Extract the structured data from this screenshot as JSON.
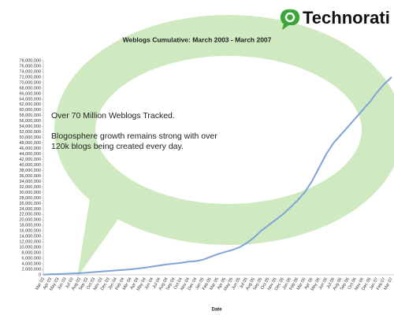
{
  "logo": "Technorati",
  "chart_data": {
    "type": "line",
    "title": "Weblogs Cumulative: March 2003 - March 2007",
    "x_label": "Date",
    "annotations": [
      "Over 70 Million Weblogs Tracked.",
      [
        "Blogosphere growth remains strong with over",
        "120k blogs being created every day."
      ]
    ],
    "categories": [
      "Mar 03",
      "Apr 03",
      "May 03",
      "Jun 03",
      "Jul 03",
      "Aug 03",
      "Sep 03",
      "Oct 03",
      "Nov 03",
      "Dec 03",
      "Jan 04",
      "Feb 04",
      "Mar 04",
      "Apr 04",
      "May 04",
      "Jun 04",
      "Jul 04",
      "Aug 04",
      "Sep 04",
      "Oct 04",
      "Nov 04",
      "Dec 04",
      "Jan 05",
      "Feb 05",
      "Mar 05",
      "Apr 05",
      "May 05",
      "Jun 05",
      "Jul 05",
      "Aug 05",
      "Sep 05",
      "Oct 05",
      "Nov 05",
      "Dec 05",
      "Jan 06",
      "Feb 06",
      "Mar 06",
      "Apr 06",
      "May 06",
      "Jun 06",
      "Jul 06",
      "Aug 06",
      "Sep 06",
      "Oct 06",
      "Nov 06",
      "Dec 06",
      "Jan 07",
      "Feb 07",
      "Mar 07"
    ],
    "series": [
      {
        "name": "Weblogs",
        "color": "#7fa4d8",
        "values": [
          100000,
          200000,
          300000,
          400000,
          500000,
          600000,
          800000,
          1000000,
          1200000,
          1400000,
          1600000,
          1800000,
          2000000,
          2300000,
          2600000,
          3000000,
          3400000,
          3800000,
          4100000,
          4400000,
          4800000,
          5000000,
          5500000,
          6500000,
          7500000,
          8300000,
          9000000,
          10000000,
          11500000,
          13500000,
          16000000,
          18000000,
          20000000,
          22000000,
          24500000,
          27000000,
          30000000,
          34000000,
          39000000,
          44000000,
          48000000,
          51000000,
          54000000,
          57000000,
          60000000,
          63000000,
          66500000,
          69500000,
          72000000
        ]
      }
    ],
    "ylim": [
      0,
      78000000
    ],
    "yticks": [
      0,
      {
        "value": 2000000,
        "label": "2,000,000"
      },
      {
        "value": 4000000,
        "label": "4,000,000"
      },
      {
        "value": 6000000,
        "label": "6,000,000"
      },
      {
        "value": 8000000,
        "label": "8,000,000"
      },
      {
        "value": 10000000,
        "label": "10,000,000"
      },
      {
        "value": 12000000,
        "label": "12,000,000"
      },
      {
        "value": 14000000,
        "label": "14,000,000"
      },
      {
        "value": 16000000,
        "label": "16,000,000"
      },
      {
        "value": 18000000,
        "label": "18,000,000"
      },
      {
        "value": 20000000,
        "label": "20,000,000"
      },
      {
        "value": 22000000,
        "label": "22,000,000"
      },
      {
        "value": 24000000,
        "label": "24,000,000"
      },
      {
        "value": 26000000,
        "label": "26,000,000"
      },
      {
        "value": 28000000,
        "label": "28,000,000"
      },
      {
        "value": 30000000,
        "label": "30,000,000"
      },
      {
        "value": 32000000,
        "label": "32,000,000"
      },
      {
        "value": 34000000,
        "label": "34,000,000"
      },
      {
        "value": 36000000,
        "label": "36,000,000"
      },
      {
        "value": 38000000,
        "label": "38,000,000"
      },
      {
        "value": 40000000,
        "label": "40,000,000"
      },
      {
        "value": 42000000,
        "label": "42,000,000"
      },
      {
        "value": 44000000,
        "label": "44,000,000"
      },
      {
        "value": 46000000,
        "label": "46,000,000"
      },
      {
        "value": 48000000,
        "label": "48,000,000"
      },
      {
        "value": 50000000,
        "label": "50,000,000"
      },
      {
        "value": 52000000,
        "label": "52,000,000"
      },
      {
        "value": 54000000,
        "label": "54,000,000"
      },
      {
        "value": 56000000,
        "label": "56,000,000"
      },
      {
        "value": 58000000,
        "label": "58,000,000"
      },
      {
        "value": 60000000,
        "label": "60,000,000"
      },
      {
        "value": 62000000,
        "label": "62,000,000"
      },
      {
        "value": 64000000,
        "label": "64,000,000"
      },
      {
        "value": 66000000,
        "label": "66,000,000"
      },
      {
        "value": 68000000,
        "label": "68,000,000"
      },
      {
        "value": 70000000,
        "label": "70,000,000"
      },
      {
        "value": 72000000,
        "label": "72,000,000"
      },
      {
        "value": 74000000,
        "label": "74,000,000"
      },
      {
        "value": 76000000,
        "label": "76,000,000"
      },
      {
        "value": 78000000,
        "label": "78,000,000"
      }
    ],
    "grid": false
  }
}
